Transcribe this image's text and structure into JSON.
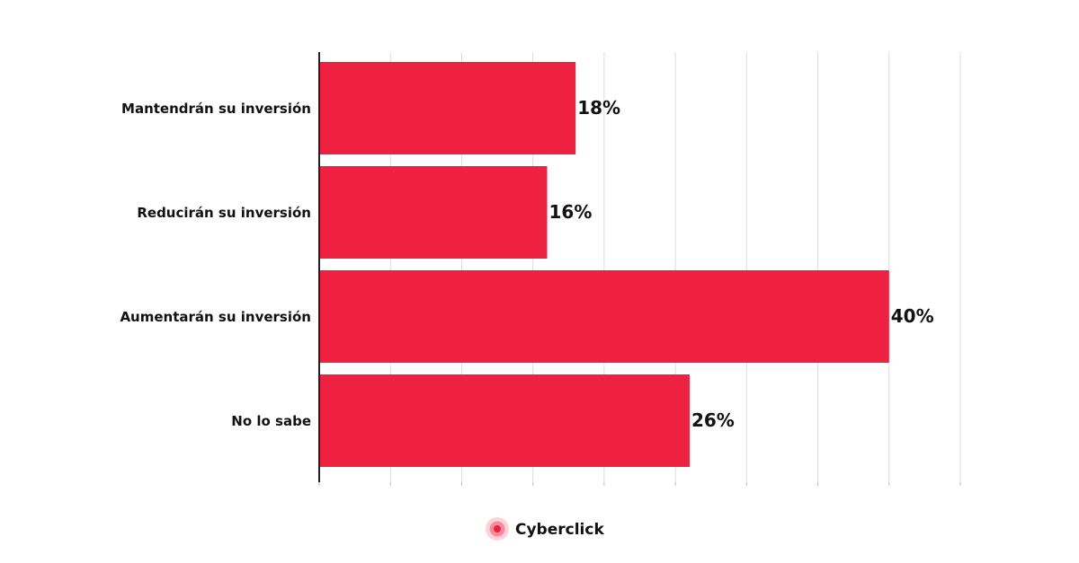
{
  "chart_data": {
    "type": "barh",
    "categories": [
      "Mantendrán su inversión",
      "Reducirán su inversión",
      "Aumentarán su inversión",
      "No lo sabe"
    ],
    "values": [
      18,
      16,
      40,
      26
    ],
    "value_labels": [
      "18%",
      "16%",
      "40%",
      "26%"
    ],
    "color": "#ee2140",
    "xlim": [
      0,
      45
    ],
    "xticks": [
      0,
      5,
      10,
      15,
      20,
      25,
      30,
      35,
      40,
      45
    ],
    "grid": true
  },
  "logo": "Cyberclick"
}
